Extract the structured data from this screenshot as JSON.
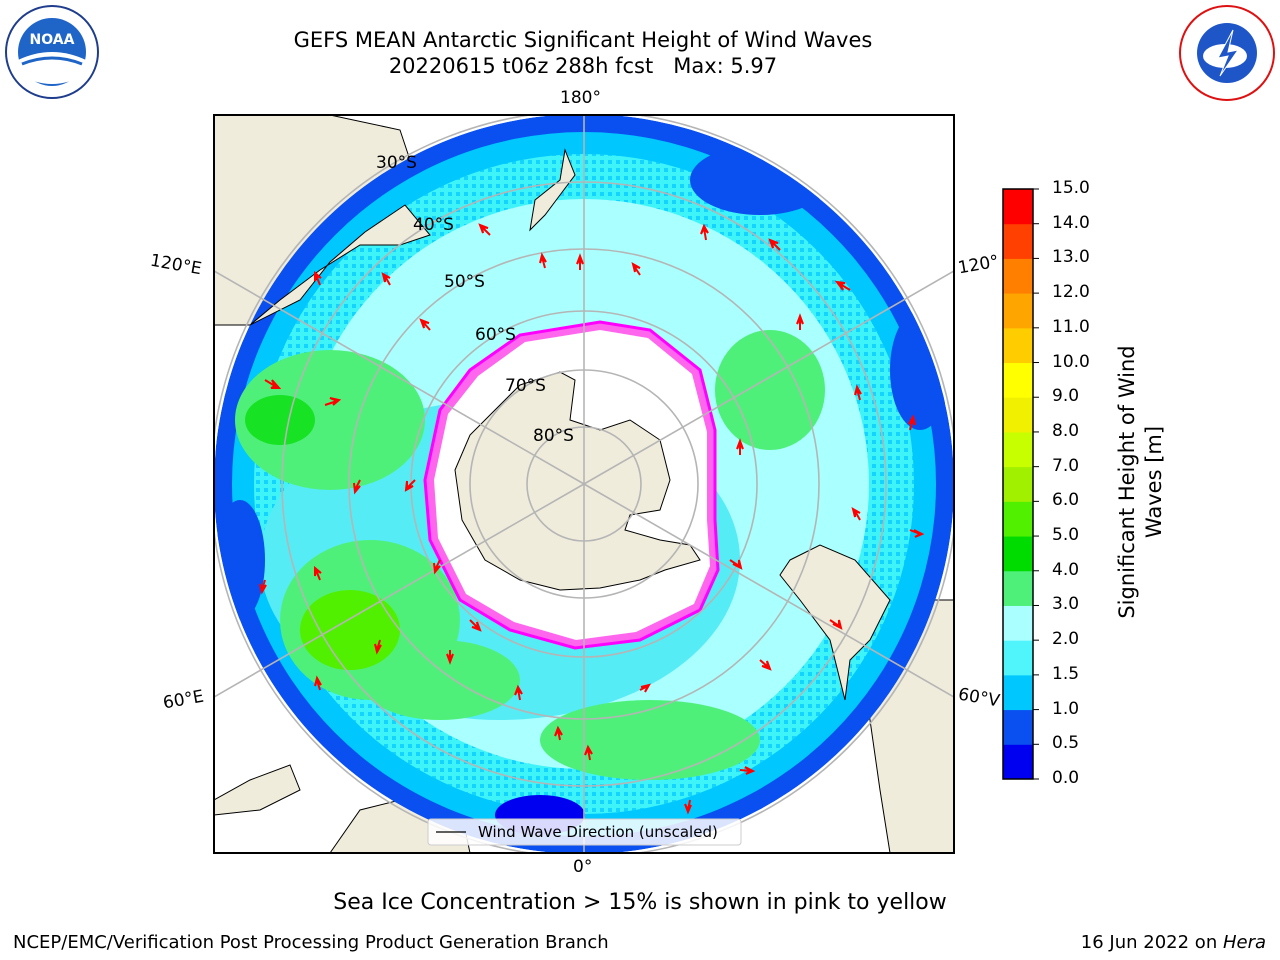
{
  "title": {
    "line1": "GEFS MEAN Antarctic Significant Height of Wind Waves",
    "line2": "20220615 t06z 288h fcst   Max: 5.97"
  },
  "logos": {
    "left": "NOAA",
    "right": "NATIONAL WEATHER SERVICE"
  },
  "map": {
    "projection": "south-polar-stereographic",
    "longitude_labels": {
      "top": "180°",
      "upper_left": "120°E",
      "upper_right": "120°",
      "lower_left": "60°E",
      "lower_right": "60°V",
      "bottom": "0°"
    },
    "latitude_labels": [
      "30°S",
      "40°S",
      "50°S",
      "60°S",
      "70°S",
      "80°S"
    ],
    "legend": "Wind Wave Direction (unscaled)",
    "colors": {
      "land": "#efecdc",
      "ice": "#ffffff",
      "arrow": "#ff0000",
      "grid": "#b5b5b5"
    }
  },
  "colorbar": {
    "label_line1": "Significant Height of Wind",
    "label_line2": "Waves [m]",
    "ticks": [
      "0.0",
      "0.5",
      "1.0",
      "1.5",
      "2.0",
      "3.0",
      "4.0",
      "5.0",
      "6.0",
      "7.0",
      "8.0",
      "9.0",
      "10.0",
      "11.0",
      "12.0",
      "13.0",
      "14.0",
      "15.0"
    ],
    "colors": [
      "#0000f0",
      "#0a50f0",
      "#00c8ff",
      "#4ff5fa",
      "#aaffff",
      "#4ff07a",
      "#00dc00",
      "#50f000",
      "#a0f000",
      "#c8ff00",
      "#f0f000",
      "#ffff00",
      "#ffcc00",
      "#ffa500",
      "#ff8000",
      "#ff4000",
      "#ff0000"
    ]
  },
  "footer": {
    "note": "Sea Ice Concentration > 15% is shown in pink to yellow",
    "left": "NCEP/EMC/Verification Post Processing Product Generation Branch",
    "date": "16 Jun 2022 on ",
    "machine": "Hera"
  }
}
